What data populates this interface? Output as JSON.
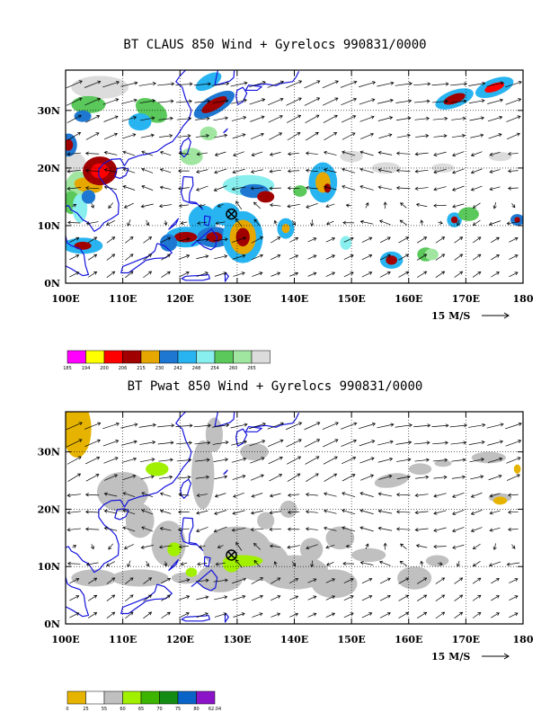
{
  "panels": [
    {
      "title": "BT CLAUS 850 Wind + Gyrelocs 990831/0000",
      "xticks": [
        "100E",
        "110E",
        "120E",
        "130E",
        "140E",
        "150E",
        "160E",
        "170E",
        "180"
      ],
      "yticks": [
        "0N",
        "10N",
        "20N",
        "30N"
      ],
      "ref_vector": "15 M/S",
      "legend_values": [
        "185",
        "194",
        "200",
        "206",
        "215",
        "230",
        "242",
        "248",
        "254",
        "260",
        "265"
      ],
      "legend_colors": [
        "#ff00ff",
        "#ffff00",
        "#ff0000",
        "#a00000",
        "#e6a800",
        "#1e78d2",
        "#28b4f0",
        "#88eeee",
        "#5ac85a",
        "#a0e6a0",
        "#dcdcdc"
      ],
      "marker": {
        "lon": 129,
        "lat": 12
      }
    },
    {
      "title": "BT Pwat 850 Wind + Gyrelocs 990831/0000",
      "xticks": [
        "100E",
        "110E",
        "120E",
        "130E",
        "140E",
        "150E",
        "160E",
        "170E",
        "180"
      ],
      "yticks": [
        "0N",
        "10N",
        "20N",
        "30N"
      ],
      "ref_vector": "15 M/S",
      "legend_values": [
        "0",
        "25",
        "55",
        "60",
        "65",
        "70",
        "75",
        "80",
        "62.04"
      ],
      "legend_colors": [
        "#e6b400",
        "#ffffff",
        "#c0c0c0",
        "#a0f000",
        "#3cb400",
        "#148c14",
        "#0a64c8",
        "#8c14c8"
      ],
      "marker": {
        "lon": 129,
        "lat": 12
      }
    }
  ]
}
